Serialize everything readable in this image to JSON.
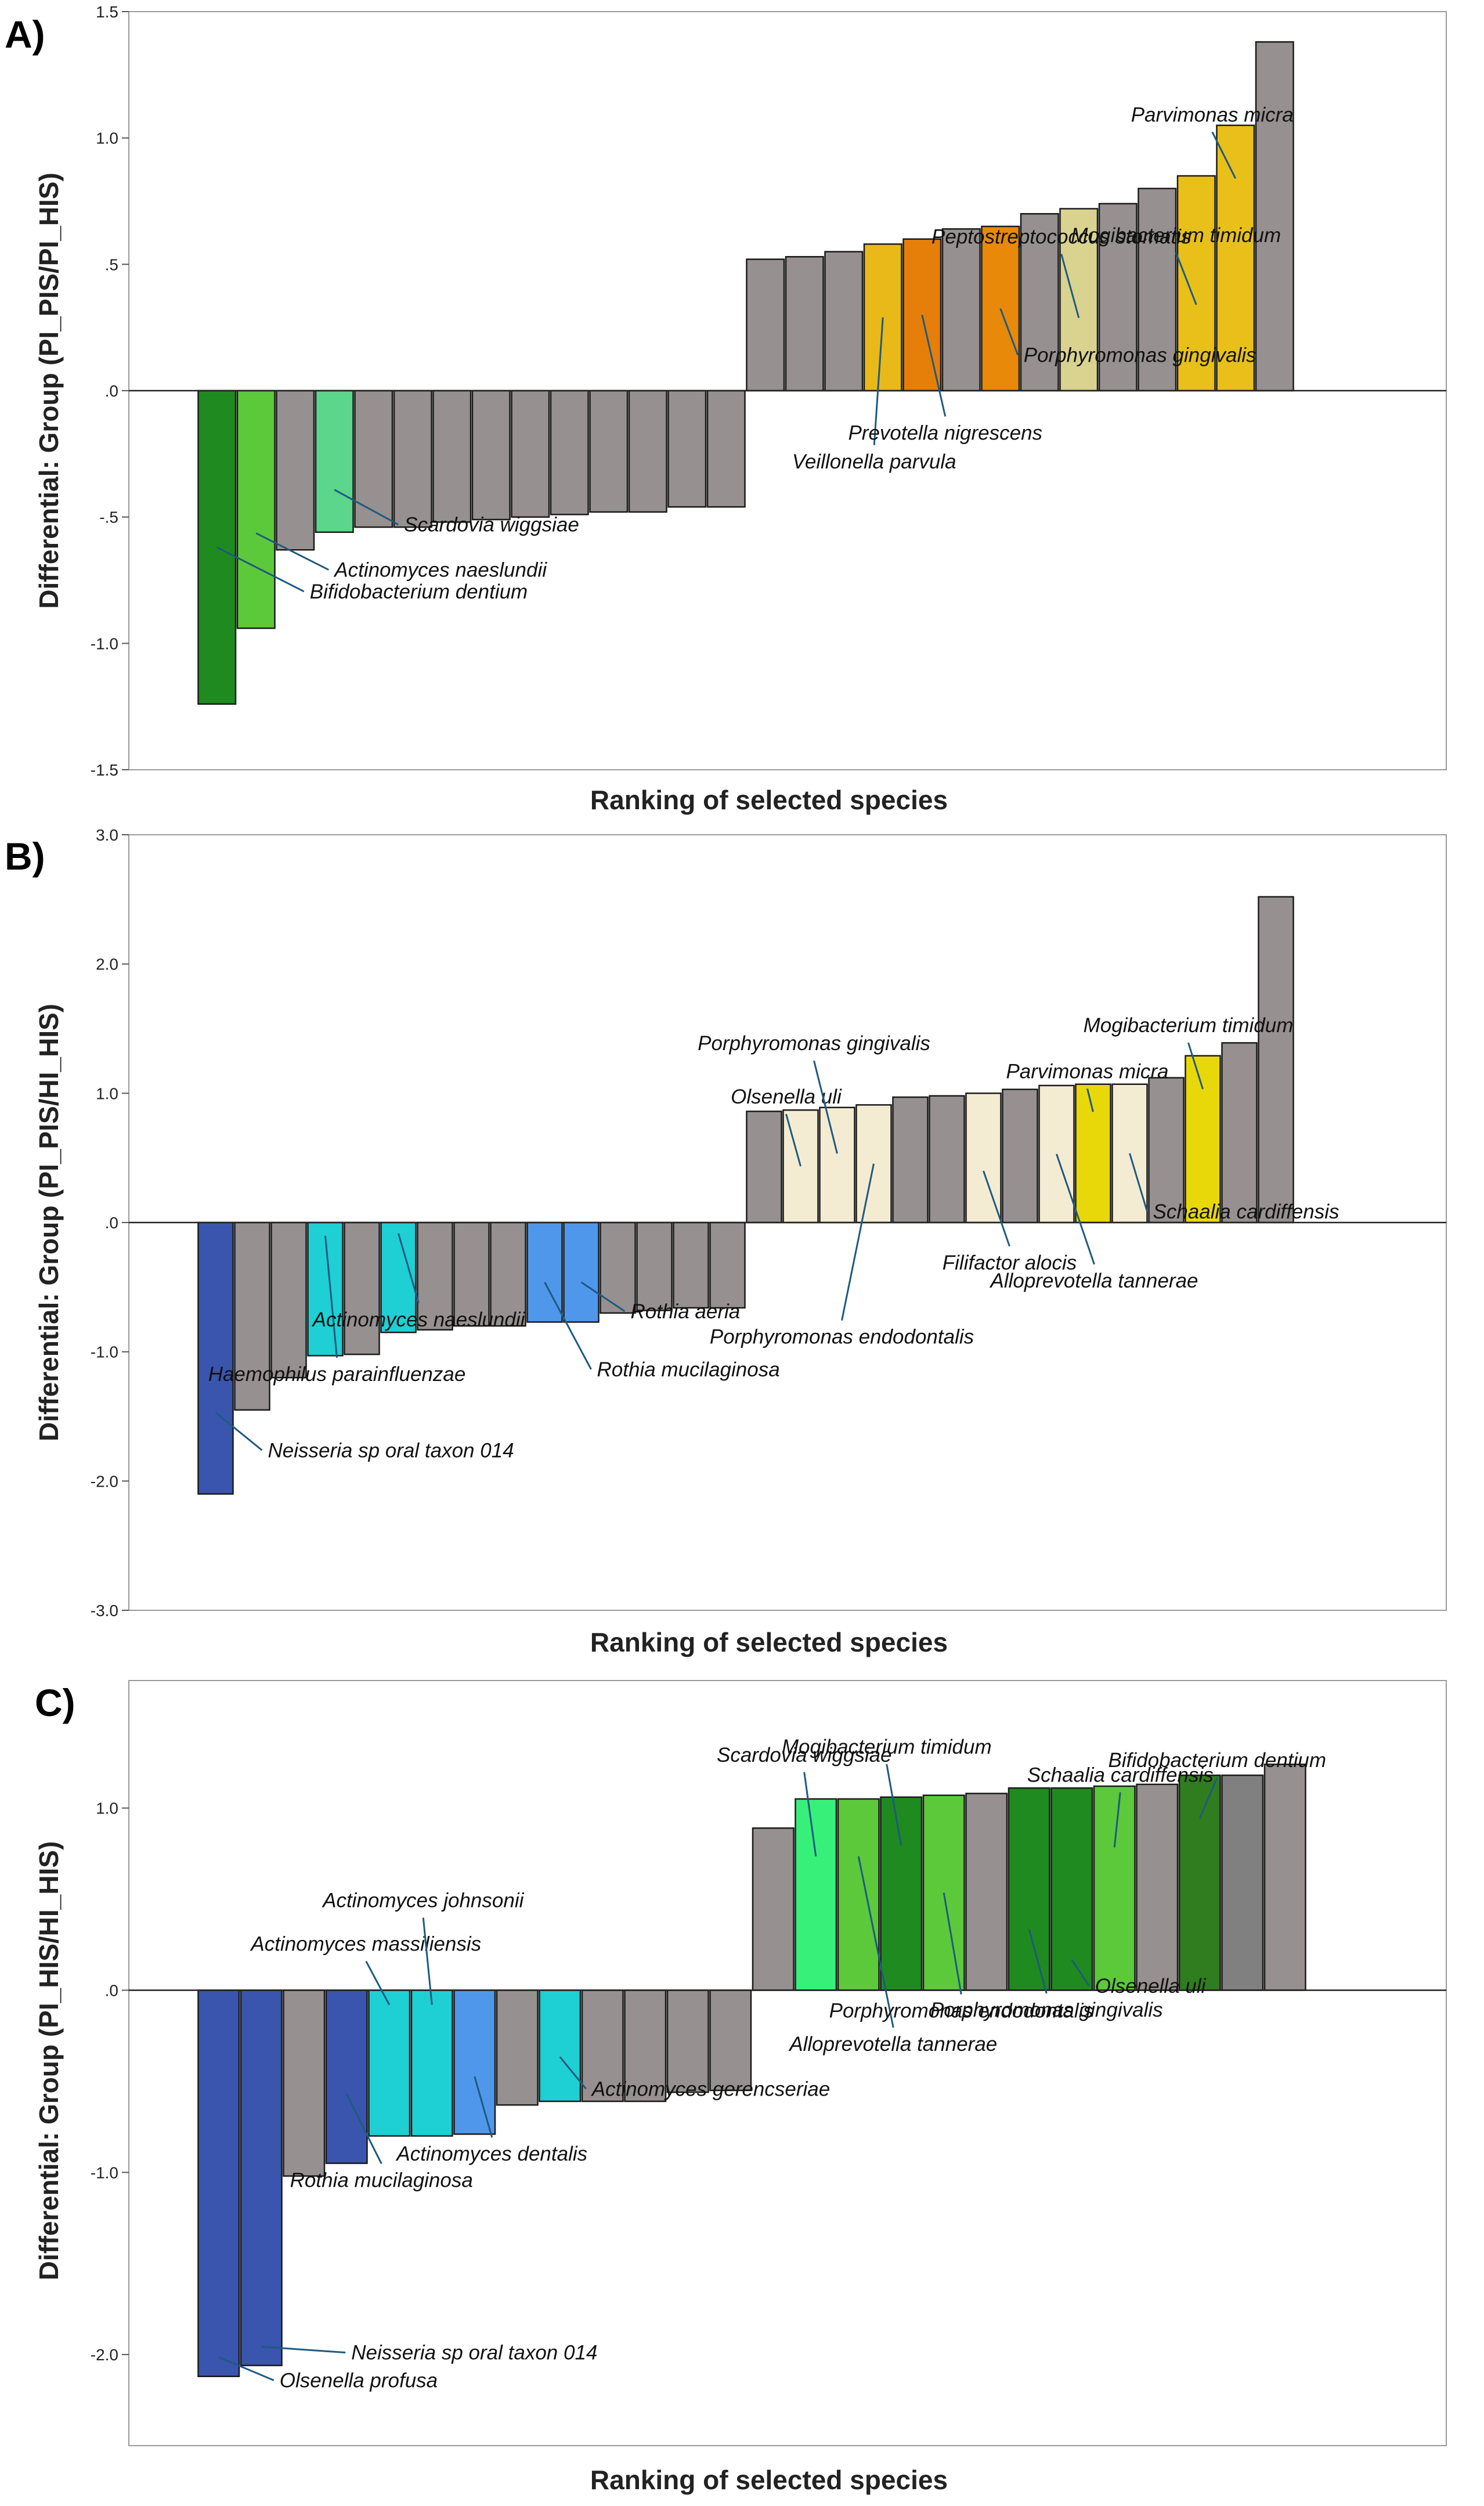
{
  "chart_data": [
    {
      "type": "bar",
      "panel_label": "A)",
      "xlabel": "Ranking of selected species",
      "ylabel": "Differential: Group (PI_PIS/PI_HIS)",
      "ylim": [
        -1.5,
        1.5
      ],
      "yticks": [
        -1.5,
        -1.0,
        -0.5,
        0.0,
        0.5,
        1.0,
        1.5
      ],
      "ytick_labels": [
        "-1.5",
        "-1.0",
        "-.5",
        ".0",
        ".5",
        "1.0",
        "1.5"
      ],
      "grid": false,
      "values": [
        -1.24,
        -0.94,
        -0.63,
        -0.56,
        -0.54,
        -0.54,
        -0.52,
        -0.51,
        -0.5,
        -0.49,
        -0.48,
        -0.48,
        -0.46,
        -0.46,
        0.52,
        0.53,
        0.55,
        0.58,
        0.6,
        0.64,
        0.65,
        0.7,
        0.72,
        0.74,
        0.8,
        0.85,
        1.05,
        1.38
      ],
      "colors": [
        "#1f8a1f",
        "#5cc93a",
        "#979090",
        "#5bd68a",
        "#979090",
        "#979090",
        "#979090",
        "#979090",
        "#979090",
        "#979090",
        "#979090",
        "#979090",
        "#979090",
        "#979090",
        "#979090",
        "#979090",
        "#979090",
        "#e8b919",
        "#e67e0a",
        "#979090",
        "#e8890a",
        "#979090",
        "#d9d38f",
        "#979090",
        "#979090",
        "#e8c019",
        "#e8c019",
        "#979090"
      ],
      "annotations": [
        {
          "text": "Bifidobacterium dentium",
          "bar": 0,
          "at": 0.5,
          "ldx": 150,
          "ldy": 76
        },
        {
          "text": "Actinomyces naeslundii",
          "bar": 1,
          "at": 0.6,
          "ldx": 125,
          "ldy": 63
        },
        {
          "text": "Scardovia wiggsiae",
          "bar": 3,
          "at": 0.7,
          "ldx": 110,
          "ldy": 60
        },
        {
          "text": "Veillonella parvula",
          "bar": 17,
          "at": 0.5,
          "ldx": -15,
          "ldy": 220
        },
        {
          "text": "Prevotella nigrescens",
          "bar": 18,
          "at": 0.5,
          "ldx": 40,
          "ldy": 175
        },
        {
          "text": "Porphyromonas gingivalis",
          "bar": 20,
          "at": 0.5,
          "ldx": 30,
          "ldy": 80
        },
        {
          "text": "Peptostreptococcus stomatis",
          "bar": 22,
          "at": 0.4,
          "ldx": -30,
          "ldy": -110
        },
        {
          "text": "Mogibacterium timidum",
          "bar": 25,
          "at": 0.4,
          "ldx": -35,
          "ldy": -90
        },
        {
          "text": "Parvimonas micra",
          "bar": 26,
          "at": 0.8,
          "ldx": -40,
          "ldy": -80
        }
      ]
    },
    {
      "type": "bar",
      "panel_label": "B)",
      "xlabel": "Ranking of selected species",
      "ylabel": "Differential: Group (PI_PIS/HI_HIS)",
      "ylim": [
        -3.0,
        3.0
      ],
      "yticks": [
        -3.0,
        -2.0,
        -1.0,
        0.0,
        1.0,
        2.0,
        3.0
      ],
      "ytick_labels": [
        "-3.0",
        "-2.0",
        "-1.0",
        ".0",
        "1.0",
        "2.0",
        "3.0"
      ],
      "grid": false,
      "values": [
        -2.1,
        -1.45,
        -1.2,
        -1.03,
        -1.02,
        -0.85,
        -0.83,
        -0.8,
        -0.8,
        -0.77,
        -0.77,
        -0.7,
        -0.68,
        -0.66,
        -0.66,
        0.86,
        0.87,
        0.89,
        0.91,
        0.97,
        0.98,
        1.0,
        1.03,
        1.06,
        1.07,
        1.07,
        1.12,
        1.29,
        1.39,
        2.52
      ],
      "colors": [
        "#3a55ad",
        "#979090",
        "#979090",
        "#1ecfd3",
        "#979090",
        "#1ecfd3",
        "#979090",
        "#979090",
        "#979090",
        "#4f97ea",
        "#4f97ea",
        "#979090",
        "#979090",
        "#979090",
        "#979090",
        "#979090",
        "#f4ecd2",
        "#f4ecd2",
        "#f4ecd2",
        "#979090",
        "#979090",
        "#f4ecd2",
        "#979090",
        "#f4ecd2",
        "#e8d80a",
        "#f4ecd2",
        "#979090",
        "#e8d80a",
        "#979090",
        "#979090"
      ],
      "annotations": [
        {
          "text": "Neisseria sp oral taxon 014",
          "bar": 0,
          "at": 0.7,
          "ldx": 80,
          "ldy": 65
        },
        {
          "text": "Haemophilus parainfluenzae",
          "bar": 3,
          "at": 0.1,
          "ldx": 20,
          "ldy": 210
        },
        {
          "text": "Actinomyces naeslundii",
          "bar": 5,
          "at": 0.1,
          "ldx": 35,
          "ldy": 120
        },
        {
          "text": "Rothia mucilaginosa",
          "bar": 9,
          "at": 0.6,
          "ldx": 80,
          "ldy": 150
        },
        {
          "text": "Rothia aeria",
          "bar": 10,
          "at": 0.6,
          "ldx": 75,
          "ldy": 50
        },
        {
          "text": "Olsenella uli",
          "bar": 16,
          "at": 0.5,
          "ldx": -25,
          "ldy": -90
        },
        {
          "text": "Porphyromonas gingivalis",
          "bar": 17,
          "at": 0.6,
          "ldx": -40,
          "ldy": -160
        },
        {
          "text": "Porphyromonas endodontalis",
          "bar": 18,
          "at": 0.5,
          "ldx": -55,
          "ldy": 270
        },
        {
          "text": "Filifactor alocis",
          "bar": 21,
          "at": 0.4,
          "ldx": 45,
          "ldy": 130
        },
        {
          "text": "Parvimonas micra",
          "bar": 24,
          "at": 0.8,
          "ldx": -10,
          "ldy": -40
        },
        {
          "text": "Alloprevotella tannerae",
          "bar": 23,
          "at": 0.5,
          "ldx": 65,
          "ldy": 190
        },
        {
          "text": "Schaalia cardiffensis",
          "bar": 25,
          "at": 0.5,
          "ldx": 30,
          "ldy": 100
        },
        {
          "text": "Mogibacterium timidum",
          "bar": 27,
          "at": 0.8,
          "ldx": -25,
          "ldy": -80
        }
      ]
    },
    {
      "type": "bar",
      "panel_label": "C)",
      "xlabel": "Ranking of selected species",
      "ylabel": "Differential: Group (PI_HIS/HI_HIS)",
      "ylim": [
        -2.5,
        1.7
      ],
      "yticks": [
        -2.0,
        -1.0,
        0.0,
        1.0
      ],
      "ytick_labels": [
        "-2.0",
        "-1.0",
        ".0",
        "1.0"
      ],
      "grid": false,
      "values": [
        -2.12,
        -2.06,
        -1.02,
        -0.95,
        -0.8,
        -0.8,
        -0.79,
        -0.63,
        -0.61,
        -0.61,
        -0.61,
        -0.56,
        -0.55,
        0.89,
        1.05,
        1.05,
        1.06,
        1.07,
        1.08,
        1.11,
        1.11,
        1.12,
        1.13,
        1.18,
        1.18,
        1.24
      ],
      "colors": [
        "#3a55ad",
        "#3a55ad",
        "#979090",
        "#3a55ad",
        "#1ecfd3",
        "#1ecfd3",
        "#4f97ea",
        "#979090",
        "#1ecfd3",
        "#979090",
        "#979090",
        "#979090",
        "#979090",
        "#979090",
        "#37f07a",
        "#5cc93a",
        "#1f8a1f",
        "#5cc93a",
        "#979090",
        "#1f8a1f",
        "#1f8a1f",
        "#5cc93a",
        "#979090",
        "#2f7d1e",
        "#808080",
        "#979090"
      ],
      "annotations": [
        {
          "text": "Olsenella profusa",
          "bar": 0,
          "at": 0.95,
          "ldx": 95,
          "ldy": 40
        },
        {
          "text": "Neisseria sp oral taxon 014",
          "bar": 1,
          "at": 0.95,
          "ldx": 145,
          "ldy": 10
        },
        {
          "text": "Rothia mucilaginosa",
          "bar": 3,
          "at": 0.6,
          "ldx": 60,
          "ldy": 120
        },
        {
          "text": "Actinomyces massiliensis",
          "bar": 4,
          "at": 0.1,
          "ldx": -40,
          "ldy": -75
        },
        {
          "text": "Actinomyces johnsonii",
          "bar": 5,
          "at": 0.1,
          "ldx": -15,
          "ldy": -150
        },
        {
          "text": "Actinomyces dentalis",
          "bar": 6,
          "at": 0.6,
          "ldx": 30,
          "ldy": 105
        },
        {
          "text": "Actinomyces gerencseriae",
          "bar": 8,
          "at": 0.6,
          "ldx": 45,
          "ldy": 55
        },
        {
          "text": "Scardovia wiggsiae",
          "bar": 14,
          "at": 0.7,
          "ldx": -20,
          "ldy": -145
        },
        {
          "text": "Mogibacterium timidum",
          "bar": 16,
          "at": 0.75,
          "ldx": -25,
          "ldy": -140
        },
        {
          "text": "Alloprevotella tannerae",
          "bar": 15,
          "at": 0.7,
          "ldx": 60,
          "ldy": 295
        },
        {
          "text": "Porphyromonas endodontalis",
          "bar": 17,
          "at": 0.5,
          "ldx": 30,
          "ldy": 175
        },
        {
          "text": "Porphyromonas gingivalis",
          "bar": 19,
          "at": 0.3,
          "ldx": 30,
          "ldy": 110
        },
        {
          "text": "Olsenella uli",
          "bar": 20,
          "at": 0.15,
          "ldx": 30,
          "ldy": 45
        },
        {
          "text": "Schaalia cardiffensis",
          "bar": 21,
          "at": 0.7,
          "ldx": 10,
          "ldy": -95
        },
        {
          "text": "Bifidobacterium dentium",
          "bar": 23,
          "at": 0.8,
          "ldx": 30,
          "ldy": -70
        }
      ]
    }
  ]
}
